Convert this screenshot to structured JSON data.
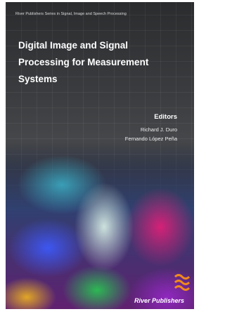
{
  "cover": {
    "series": "River Publishers Series in Signal, Image and Speech Processing",
    "title_lines": [
      "Digital Image and Signal",
      "Processing for Measurement",
      "Systems"
    ],
    "editors_label": "Editors",
    "editors": [
      "Richard J. Duro",
      "Fernando López Peña"
    ],
    "publisher": "River Publishers"
  }
}
